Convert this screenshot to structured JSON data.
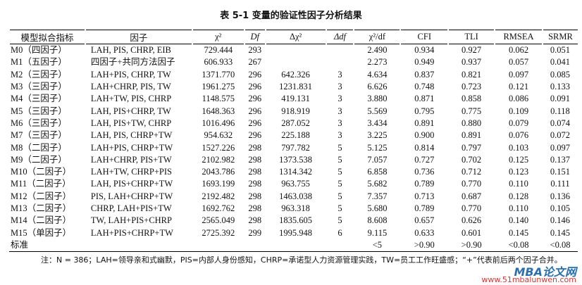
{
  "title": "表 5-1 变量的验证性因子分析结果",
  "table": {
    "columns": [
      "模型拟合指标",
      "因子",
      "χ²",
      "Df",
      "Δχ²",
      "Δdf",
      "χ²/df",
      "CFI",
      "TLI",
      "RMSEA",
      "SRMR"
    ],
    "rows": [
      {
        "model": "M0（四因子）",
        "factors": "LAH, PIS, CHRP, EIB",
        "chi2": "729.444",
        "df": "293",
        "ratio": "2.490",
        "cfi": "0.934",
        "tli": "0.927",
        "rmsea": "0.062",
        "srmr": "0.051"
      },
      {
        "model": "M1（五因子）",
        "factors": "四因子+共同方法因子",
        "chi2": "606.933",
        "df": "267",
        "ratio": "2.273",
        "cfi": "0.949",
        "tli": "0.937",
        "rmsea": "0.057",
        "srmr": "0.041"
      },
      {
        "model": "M2（三因子）",
        "factors": "LAH+PIS, CHRP, TW",
        "chi2": "1371.770",
        "df": "296",
        "dchi2": "642.326",
        "ddf": "3",
        "ratio": "4.634",
        "cfi": "0.837",
        "tli": "0.821",
        "rmsea": "0.097",
        "srmr": "0.085"
      },
      {
        "model": "M3（三因子）",
        "factors": "LAH+CHRP, PIS, TW",
        "chi2": "1961.275",
        "df": "296",
        "dchi2": "1231.831",
        "ddf": "3",
        "ratio": "6.626",
        "cfi": "0.748",
        "tli": "0.723",
        "rmsea": "0.121",
        "srmr": "0.133"
      },
      {
        "model": "M4（三因子）",
        "factors": "LAH+TW, PIS, CHRP",
        "chi2": "1148.575",
        "df": "296",
        "dchi2": "419.131",
        "ddf": "3",
        "ratio": "3.880",
        "cfi": "0.871",
        "tli": "0.858",
        "rmsea": "0.086",
        "srmr": "0.091"
      },
      {
        "model": "M5（三因子）",
        "factors": "LAH, PIS+CHRP, TW",
        "chi2": "1648.363",
        "df": "296",
        "dchi2": "918.919",
        "ddf": "3",
        "ratio": "5.569",
        "cfi": "0.795",
        "tli": "0.775",
        "rmsea": "0.109",
        "srmr": "0.118"
      },
      {
        "model": "M6（三因子）",
        "factors": "LAH, PIS+TW, CHRP",
        "chi2": "1016.496",
        "df": "296",
        "dchi2": "287.052",
        "ddf": "3",
        "ratio": "3.434",
        "cfi": "0.891",
        "tli": "0.880",
        "rmsea": "0.079",
        "srmr": "0.074"
      },
      {
        "model": "M7（三因子）",
        "factors": "LAH, PIS, CHRP+TW",
        "chi2": "954.632",
        "df": "296",
        "dchi2": "225.188",
        "ddf": "3",
        "ratio": "3.225",
        "cfi": "0.900",
        "tli": "0.891",
        "rmsea": "0.076",
        "srmr": "0.072"
      },
      {
        "model": "M8（二因子）",
        "factors": "LAH+PIS, CHRP+TW",
        "chi2": "1527.226",
        "df": "298",
        "dchi2": "797.782",
        "ddf": "5",
        "ratio": "5.125",
        "cfi": "0.814",
        "tli": "0.797",
        "rmsea": "0.103",
        "srmr": "0.097"
      },
      {
        "model": "M9（二因子）",
        "factors": "LAH+CHRP, PIS+TW",
        "chi2": "2102.982",
        "df": "298",
        "dchi2": "1373.538",
        "ddf": "5",
        "ratio": "7.057",
        "cfi": "0.727",
        "tli": "0.702",
        "rmsea": "0.125",
        "srmr": "0.137"
      },
      {
        "model": "M10（二因子）",
        "factors": "LAH+TW, CHRP+PIS",
        "chi2": "2043.786",
        "df": "298",
        "dchi2": "1314.342",
        "ddf": "5",
        "ratio": "6.858",
        "cfi": "0.736",
        "tli": "0.712",
        "rmsea": "0.123",
        "srmr": "0.151"
      },
      {
        "model": "M11（二因子）",
        "factors": "LAH, PIS+CHRP+TW",
        "chi2": "1693.199",
        "df": "298",
        "dchi2": "963.755",
        "ddf": "5",
        "ratio": "5.682",
        "cfi": "0.789",
        "tli": "0.770",
        "rmsea": "0.110",
        "srmr": "0.111"
      },
      {
        "model": "M12（二因子）",
        "factors": "PIS, LAH+CHRP+TW",
        "chi2": "2192.482",
        "df": "298",
        "dchi2": "1463.038",
        "ddf": "5",
        "ratio": "7.357",
        "cfi": "0.713",
        "tli": "0.687",
        "rmsea": "0.128",
        "srmr": "0.136"
      },
      {
        "model": "M13（二因子）",
        "factors": "CHRP, LAH+PIS+TW",
        "chi2": "1692.762",
        "df": "298",
        "dchi2": "963.318",
        "ddf": "5",
        "ratio": "5.680",
        "cfi": "0.789",
        "tli": "0.770",
        "rmsea": "0.110",
        "srmr": "0.105"
      },
      {
        "model": "M14（二因子）",
        "factors": "TW, LAH+PIS+CHRP",
        "chi2": "2565.049",
        "df": "298",
        "dchi2": "1835.605",
        "ddf": "5",
        "ratio": "8.608",
        "cfi": "0.657",
        "tli": "0.626",
        "rmsea": "0.140",
        "srmr": "0.146"
      },
      {
        "model": "M15（单因子）",
        "factors": "LAH+PIS+CHRP+TW",
        "chi2": "2725.392",
        "df": "299",
        "dchi2": "1995.948",
        "ddf": "6",
        "ratio": "9.115",
        "cfi": "0.633",
        "tli": "0.601",
        "rmsea": "0.145",
        "srmr": "0.145"
      },
      {
        "model": "标准",
        "ratio": "<5",
        "cfi": ">0.90",
        "tli": ">0.90",
        "rmsea": "<0.08",
        "srmr": "<0.08"
      }
    ]
  },
  "note": "注：N = 386；LAH=领导亲和式幽默，PIS=内部人身份感知，CHRP=承诺型人力资源管理实践，TW=员工工作旺盛感；“+”代表前后两个因子合并。",
  "watermark": {
    "brand": "MBA论文网",
    "url": "www.51mbalunwen.com"
  }
}
